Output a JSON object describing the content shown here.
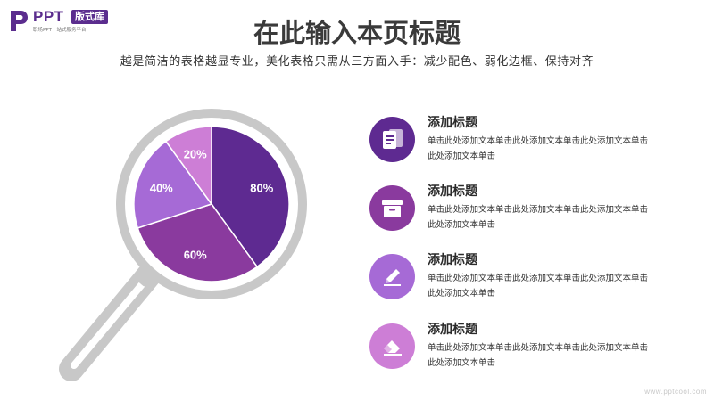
{
  "logo": {
    "brand": "PPT",
    "badge": "版式库",
    "tagline": "职场PPT一站式服务平台"
  },
  "header": {
    "title": "在此输入本页标题",
    "subtitle": "越是简洁的表格越显专业，美化表格只需从三方面入手：减少配色、弱化边框、保持对齐"
  },
  "chart_data": {
    "type": "pie",
    "categories": [
      "80%",
      "60%",
      "40%",
      "20%"
    ],
    "values": [
      80,
      60,
      40,
      20
    ],
    "colors": [
      "#5e2a91",
      "#8a3a9e",
      "#a66ad6",
      "#cd7ed6"
    ]
  },
  "items": [
    {
      "title": "添加标题",
      "text": "单击此处添加文本单击此处添加文本单击此处添加文本单击此处添加文本单击",
      "icon": "notes-icon",
      "color": "#5e2a91"
    },
    {
      "title": "添加标题",
      "text": "单击此处添加文本单击此处添加文本单击此处添加文本单击此处添加文本单击",
      "icon": "archive-box-icon",
      "color": "#8a3a9e"
    },
    {
      "title": "添加标题",
      "text": "单击此处添加文本单击此处添加文本单击此处添加文本单击此处添加文本单击",
      "icon": "pencil-icon",
      "color": "#a66ad6"
    },
    {
      "title": "添加标题",
      "text": "单击此处添加文本单击此处添加文本单击此处添加文本单击此处添加文本单击",
      "icon": "eraser-icon",
      "color": "#cd7ed6"
    }
  ],
  "watermark": "www.pptcool.com",
  "colors": {
    "magnifier": "#c8c8c8",
    "brand": "#5b2d8e"
  }
}
